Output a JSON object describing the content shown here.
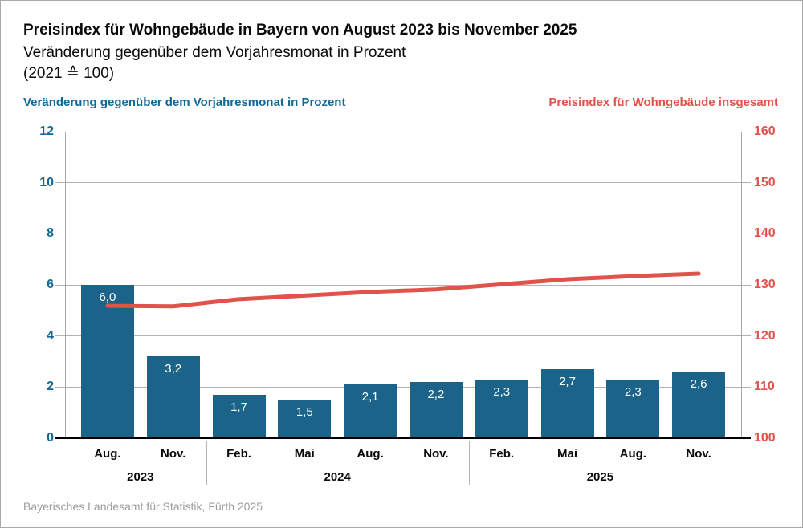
{
  "header": {
    "title": "Preisindex für Wohngebäude in Bayern von August 2023 bis November 2025",
    "subtitle": "Veränderung gegenüber dem Vorjahresmonat in Prozent",
    "basis": "(2021 ≙ 100)"
  },
  "legend": {
    "left_label": "Veränderung gegenüber dem Vorjahresmonat in Prozent",
    "right_label": "Preisindex für Wohngebäude insgesamt"
  },
  "footer": {
    "source": "Bayerisches Landesamt für Statistik, Fürth 2025"
  },
  "colors": {
    "bar_fill": "#1b6388",
    "line_stroke": "#e0524a",
    "left_axis_text": "#106896",
    "right_axis_text": "#e0524a",
    "grid": "#b3b3b3",
    "axis": "#a6a6a6",
    "baseline": "#000000",
    "bar_value_text": "#ffffff",
    "source_text": "#9d9d9d"
  },
  "chart_data": {
    "type": "bar",
    "title": "Preisindex für Wohngebäude in Bayern von August 2023 bis November 2025",
    "categories": [
      "Aug.",
      "Nov.",
      "Feb.",
      "Mai",
      "Aug.",
      "Nov.",
      "Feb.",
      "Mai",
      "Aug.",
      "Nov."
    ],
    "year_groups": [
      {
        "label": "2023",
        "span": 2
      },
      {
        "label": "2024",
        "span": 4
      },
      {
        "label": "2025",
        "span": 4
      }
    ],
    "series": [
      {
        "name": "Veränderung gegenüber dem Vorjahresmonat in Prozent",
        "type": "bar",
        "axis": "left",
        "values": [
          6.0,
          3.2,
          1.7,
          1.5,
          2.1,
          2.2,
          2.3,
          2.7,
          2.3,
          2.6
        ],
        "value_labels": [
          "6,0",
          "3,2",
          "1,7",
          "1,5",
          "2,1",
          "2,2",
          "2,3",
          "2,7",
          "2,3",
          "2,6"
        ]
      },
      {
        "name": "Preisindex für Wohngebäude insgesamt",
        "type": "line",
        "axis": "right",
        "values": [
          125.9,
          125.8,
          127.2,
          127.9,
          128.6,
          129.1,
          130.1,
          131.1,
          131.7,
          132.2
        ]
      }
    ],
    "left_axis": {
      "min": 0,
      "max": 12,
      "step": 2,
      "ticks": [
        "0",
        "2",
        "4",
        "6",
        "8",
        "10",
        "12"
      ]
    },
    "right_axis": {
      "min": 100,
      "max": 160,
      "step": 10,
      "ticks": [
        "100",
        "110",
        "120",
        "130",
        "140",
        "150",
        "160"
      ]
    },
    "grid": true,
    "legend_position": "top"
  }
}
